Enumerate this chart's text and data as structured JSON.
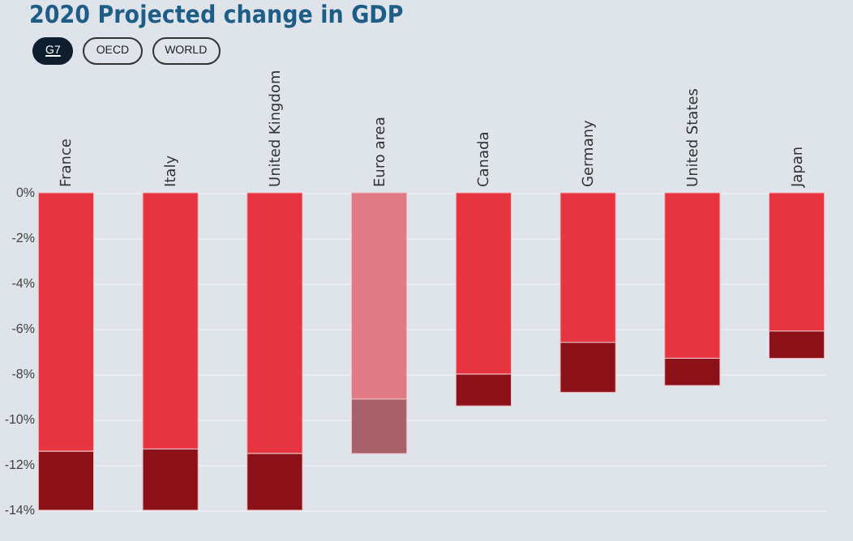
{
  "chart_data": {
    "type": "bar",
    "title": "2020 Projected change in GDP",
    "annotations": [
      "G7",
      "OECD",
      "WORLD"
    ],
    "categories": [
      "France",
      "Italy",
      "United Kingdom",
      "Euro area",
      "Canada",
      "Germany",
      "United States",
      "Japan"
    ],
    "stacked": true,
    "series": [
      {
        "colors": [
          "#e63441",
          "#e63441",
          "#e63441",
          "#e07a85",
          "#e63441",
          "#e63441",
          "#e63441",
          "#e63441"
        ],
        "values": [
          -11.4,
          -11.3,
          -11.5,
          -9.1,
          -8.0,
          -6.6,
          -7.3,
          -6.1
        ]
      },
      {
        "colors": [
          "#8b1018",
          "#8b1018",
          "#8b1018",
          "#a8606a",
          "#8b1018",
          "#8b1018",
          "#8b1018",
          "#8b1018"
        ],
        "values": [
          -2.6,
          -2.7,
          -2.5,
          -2.4,
          -1.4,
          -2.2,
          -1.2,
          -1.2
        ]
      }
    ],
    "ylim": [
      -14,
      0
    ],
    "yticks": [
      {
        "value": 0,
        "label": "0%"
      },
      {
        "value": -2,
        "label": "-2%"
      },
      {
        "value": -4,
        "label": "-4%"
      },
      {
        "value": -6,
        "label": "-6%"
      },
      {
        "value": -8,
        "label": "-8%"
      },
      {
        "value": -10,
        "label": "-10%"
      },
      {
        "value": -12,
        "label": "-12%"
      },
      {
        "value": -14,
        "label": "-14%"
      }
    ],
    "grid": "y"
  }
}
